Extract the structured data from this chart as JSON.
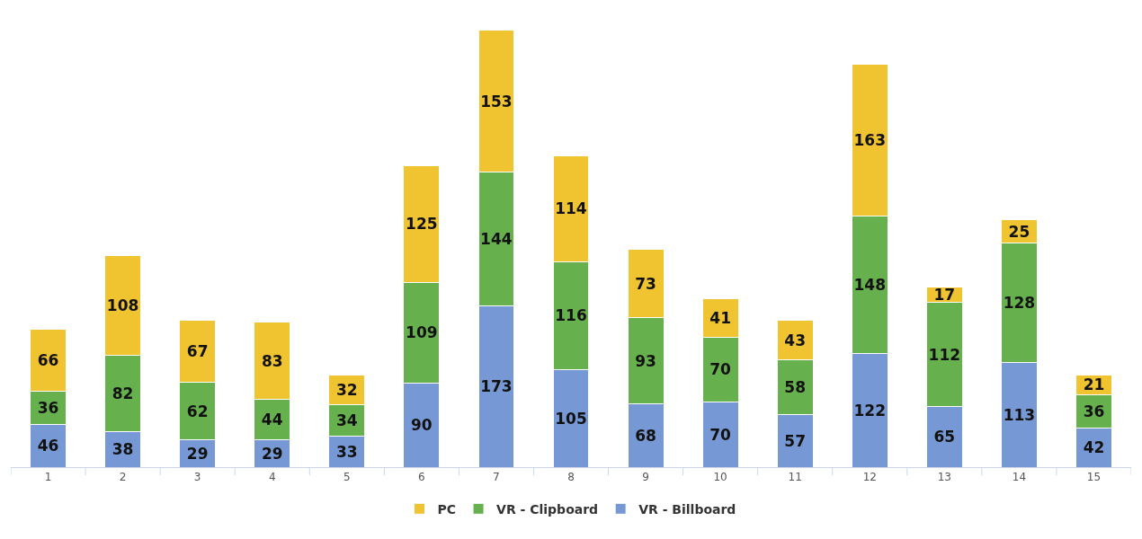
{
  "chart_data": {
    "type": "bar",
    "stacked": true,
    "data_labels": true,
    "legend": "bottom",
    "grid": false,
    "tick_labels": "x",
    "categories": [
      "1",
      "2",
      "3",
      "4",
      "5",
      "6",
      "7",
      "8",
      "9",
      "10",
      "11",
      "12",
      "13",
      "14",
      "15"
    ],
    "series": [
      {
        "name": "VR - Billboard",
        "color": "#7698d4",
        "values": [
          46,
          38,
          29,
          29,
          33,
          90,
          173,
          105,
          68,
          70,
          57,
          122,
          65,
          113,
          42
        ]
      },
      {
        "name": "VR - Clipboard",
        "color": "#67b04e",
        "values": [
          36,
          82,
          62,
          44,
          34,
          109,
          144,
          116,
          93,
          70,
          58,
          148,
          112,
          128,
          36
        ]
      },
      {
        "name": "PC",
        "color": "#f0c330",
        "values": [
          66,
          108,
          67,
          83,
          32,
          125,
          153,
          114,
          73,
          41,
          43,
          163,
          17,
          25,
          21
        ]
      }
    ]
  }
}
